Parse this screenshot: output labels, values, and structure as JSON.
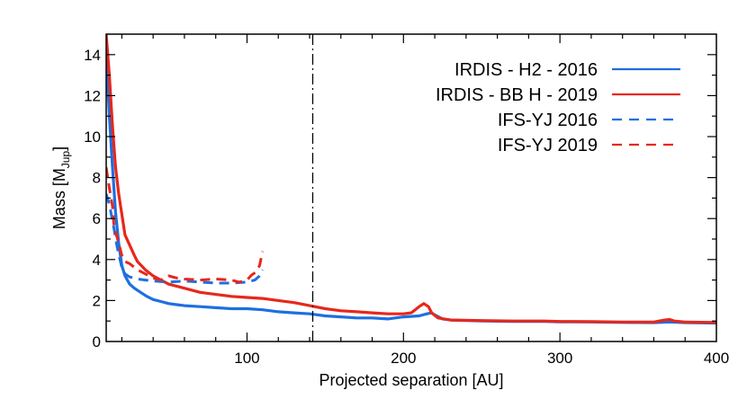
{
  "chart_data": {
    "type": "line",
    "xlabel": "Projected separation [AU]",
    "ylabel": {
      "main": "Mass [M",
      "sub": "Jup",
      "close": "]"
    },
    "xlim": [
      10,
      400
    ],
    "ylim": [
      0,
      15
    ],
    "x_ticks": [
      100,
      200,
      300,
      400
    ],
    "y_ticks": [
      0,
      2,
      4,
      6,
      8,
      10,
      12,
      14
    ],
    "grid": false,
    "legend_position": "top-right",
    "vertical_line": {
      "x": 142,
      "style": "dash-dot",
      "color": "#000000"
    },
    "series": [
      {
        "name": "IRDIS - H2 - 2016",
        "color": "#1e6fe0",
        "dash": "solid",
        "points": [
          [
            10,
            14.2
          ],
          [
            12,
            11
          ],
          [
            14,
            8.5
          ],
          [
            16,
            6.3
          ],
          [
            18,
            4.8
          ],
          [
            20,
            3.7
          ],
          [
            22,
            3.2
          ],
          [
            25,
            2.8
          ],
          [
            28,
            2.6
          ],
          [
            32,
            2.4
          ],
          [
            36,
            2.2
          ],
          [
            40,
            2.05
          ],
          [
            45,
            1.95
          ],
          [
            50,
            1.85
          ],
          [
            55,
            1.8
          ],
          [
            60,
            1.75
          ],
          [
            70,
            1.7
          ],
          [
            80,
            1.65
          ],
          [
            90,
            1.6
          ],
          [
            100,
            1.6
          ],
          [
            110,
            1.55
          ],
          [
            120,
            1.45
          ],
          [
            130,
            1.4
          ],
          [
            140,
            1.35
          ],
          [
            150,
            1.25
          ],
          [
            160,
            1.2
          ],
          [
            170,
            1.15
          ],
          [
            180,
            1.15
          ],
          [
            190,
            1.1
          ],
          [
            200,
            1.2
          ],
          [
            210,
            1.25
          ],
          [
            215,
            1.35
          ],
          [
            218,
            1.4
          ],
          [
            220,
            1.3
          ],
          [
            225,
            1.1
          ],
          [
            230,
            1.05
          ],
          [
            250,
            1.0
          ],
          [
            270,
            0.98
          ],
          [
            290,
            0.98
          ],
          [
            300,
            0.96
          ],
          [
            320,
            0.95
          ],
          [
            340,
            0.93
          ],
          [
            360,
            0.92
          ],
          [
            370,
            0.95
          ],
          [
            380,
            0.92
          ],
          [
            400,
            0.9
          ]
        ]
      },
      {
        "name": "IRDIS - BB H - 2019",
        "color": "#e8271b",
        "dash": "solid",
        "points": [
          [
            10,
            15
          ],
          [
            12,
            13
          ],
          [
            14,
            10.5
          ],
          [
            16,
            8.5
          ],
          [
            18,
            7.2
          ],
          [
            20,
            6.2
          ],
          [
            22,
            5.2
          ],
          [
            25,
            4.7
          ],
          [
            28,
            4.2
          ],
          [
            30,
            3.9
          ],
          [
            35,
            3.5
          ],
          [
            40,
            3.2
          ],
          [
            45,
            3.0
          ],
          [
            50,
            2.8
          ],
          [
            60,
            2.6
          ],
          [
            70,
            2.4
          ],
          [
            80,
            2.3
          ],
          [
            90,
            2.2
          ],
          [
            100,
            2.15
          ],
          [
            110,
            2.1
          ],
          [
            120,
            2.0
          ],
          [
            130,
            1.9
          ],
          [
            140,
            1.75
          ],
          [
            150,
            1.6
          ],
          [
            160,
            1.5
          ],
          [
            170,
            1.45
          ],
          [
            180,
            1.4
          ],
          [
            190,
            1.35
          ],
          [
            200,
            1.35
          ],
          [
            205,
            1.4
          ],
          [
            210,
            1.7
          ],
          [
            213,
            1.85
          ],
          [
            216,
            1.7
          ],
          [
            218,
            1.4
          ],
          [
            222,
            1.15
          ],
          [
            230,
            1.05
          ],
          [
            250,
            1.02
          ],
          [
            270,
            1.0
          ],
          [
            290,
            1.0
          ],
          [
            300,
            0.98
          ],
          [
            320,
            0.97
          ],
          [
            340,
            0.95
          ],
          [
            360,
            0.95
          ],
          [
            367,
            1.05
          ],
          [
            370,
            1.08
          ],
          [
            373,
            1.0
          ],
          [
            380,
            0.95
          ],
          [
            400,
            0.93
          ]
        ]
      },
      {
        "name": "IFS-YJ 2016",
        "color": "#1e6fe0",
        "dash": "dashed",
        "points": [
          [
            10,
            7.2
          ],
          [
            12,
            6.7
          ],
          [
            15,
            5.5
          ],
          [
            17,
            4.6
          ],
          [
            20,
            3.6
          ],
          [
            22,
            3.3
          ],
          [
            25,
            3.15
          ],
          [
            30,
            3.05
          ],
          [
            35,
            3.0
          ],
          [
            40,
            2.95
          ],
          [
            50,
            2.9
          ],
          [
            60,
            2.95
          ],
          [
            70,
            2.9
          ],
          [
            80,
            2.85
          ],
          [
            90,
            2.85
          ],
          [
            100,
            2.9
          ],
          [
            105,
            3.0
          ],
          [
            108,
            3.2
          ],
          [
            110,
            3.5
          ]
        ]
      },
      {
        "name": "IFS-YJ 2019",
        "color": "#e8271b",
        "dash": "dashed",
        "points": [
          [
            10,
            8.5
          ],
          [
            12,
            7.5
          ],
          [
            14,
            6.6
          ],
          [
            15,
            5.6
          ],
          [
            18,
            4.8
          ],
          [
            20,
            4.2
          ],
          [
            22,
            3.9
          ],
          [
            25,
            3.8
          ],
          [
            30,
            3.5
          ],
          [
            35,
            3.3
          ],
          [
            40,
            3.1
          ],
          [
            45,
            3.0
          ],
          [
            50,
            3.2
          ],
          [
            55,
            3.1
          ],
          [
            60,
            3.05
          ],
          [
            70,
            3.0
          ],
          [
            80,
            3.05
          ],
          [
            90,
            3.0
          ],
          [
            95,
            2.9
          ],
          [
            100,
            3.0
          ],
          [
            103,
            3.25
          ],
          [
            106,
            3.4
          ],
          [
            108,
            3.7
          ],
          [
            110,
            4.4
          ]
        ]
      }
    ]
  }
}
